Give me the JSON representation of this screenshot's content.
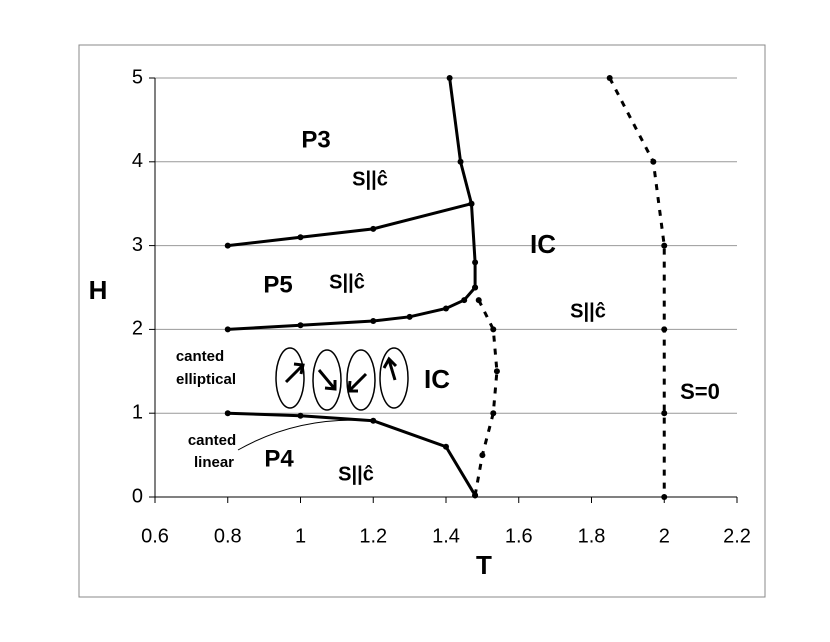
{
  "chart_data": {
    "type": "line",
    "xlabel": "T",
    "ylabel": "H",
    "xlim": [
      0.6,
      2.2
    ],
    "ylim": [
      0,
      5
    ],
    "xticks": [
      0.6,
      0.8,
      1,
      1.2,
      1.4,
      1.6,
      1.8,
      2,
      2.2
    ],
    "yticks": [
      0,
      1,
      2,
      3,
      4,
      5
    ],
    "grid": true,
    "series": [
      {
        "color": "#000000",
        "dash": false,
        "x": [
          0.8,
          1.0,
          1.2,
          1.3,
          1.4,
          1.45,
          1.48
        ],
        "values": [
          2.0,
          2.05,
          2.1,
          2.15,
          2.25,
          2.35,
          2.5
        ]
      },
      {
        "color": "#000000",
        "dash": false,
        "x": [
          0.8,
          1.0,
          1.2,
          1.47
        ],
        "values": [
          3.0,
          3.1,
          3.2,
          3.5
        ]
      },
      {
        "color": "#000000",
        "dash": false,
        "x": [
          1.41,
          1.44,
          1.47,
          1.48,
          1.48
        ],
        "values": [
          5.0,
          4.0,
          3.5,
          2.8,
          2.5
        ]
      },
      {
        "color": "#000000",
        "dash": false,
        "x": [
          0.8,
          1.0,
          1.2,
          1.4,
          1.48
        ],
        "values": [
          1.0,
          0.97,
          0.91,
          0.6,
          0.02
        ]
      },
      {
        "color": "#000000",
        "dash": true,
        "x": [
          1.48,
          1.5,
          1.53,
          1.54,
          1.53,
          1.49
        ],
        "values": [
          0.02,
          0.5,
          1.0,
          1.5,
          2.0,
          2.35
        ]
      },
      {
        "color": "#000000",
        "dash": true,
        "x": [
          1.85,
          1.97,
          2.0,
          2.0,
          2.0,
          2.0
        ],
        "values": [
          5.0,
          4.0,
          3.0,
          2.0,
          1.0,
          0.0
        ]
      }
    ],
    "annotations": [
      "P3",
      "S||ĉ",
      "IC",
      "P5",
      "S||ĉ",
      "S||ĉ",
      "canted",
      "elliptical",
      "IC",
      "S=0",
      "canted",
      "linear",
      "P4",
      "S||ĉ"
    ]
  }
}
